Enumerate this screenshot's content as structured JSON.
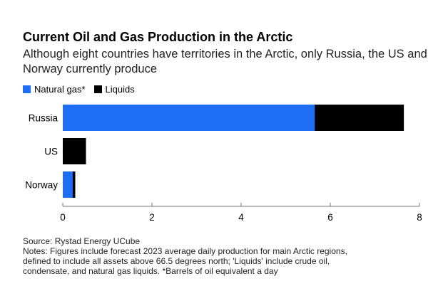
{
  "title": "Current Oil and Gas Production in the Arctic",
  "subtitle": "Although eight countries have territories in the Arctic, only Russia, the US and Norway currently produce",
  "legend": [
    {
      "label": "Natural gas*",
      "color": "#1f6cf5"
    },
    {
      "label": "Liquids",
      "color": "#000000"
    }
  ],
  "chart_data": {
    "type": "bar",
    "orientation": "horizontal",
    "stacked": true,
    "categories": [
      "Russia",
      "US",
      "Norway"
    ],
    "series": [
      {
        "name": "Natural gas*",
        "color": "#1f6cf5",
        "values": [
          5.65,
          0.0,
          0.22
        ]
      },
      {
        "name": "Liquids",
        "color": "#000000",
        "values": [
          2.0,
          0.52,
          0.06
        ]
      }
    ],
    "xlim": [
      0,
      8
    ],
    "xticks": [
      0,
      2,
      4,
      6,
      8
    ],
    "legend_position": "top-left",
    "grid": false
  },
  "source": "Source: Rystad Energy UCube",
  "notes": "Notes: Figures include forecast 2023 average daily production for main Arctic regions, defined to include all assets above 66.5 degrees north; 'Liquids' include crude oil, condensate, and natural gas liquids. *Barrels of oil equivalent a day"
}
